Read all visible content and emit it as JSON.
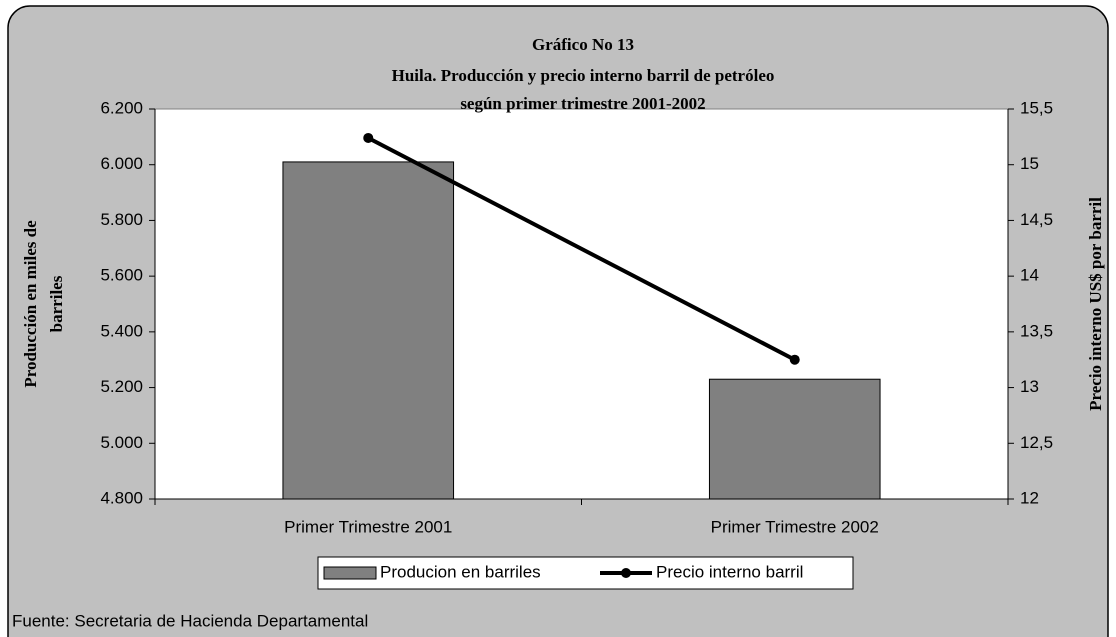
{
  "chart_data": {
    "type": "bar",
    "title": "Gráfico No 13",
    "subtitle": [
      "Huila. Producción y precio interno barril de petróleo",
      "según primer trimestre 2001-2002"
    ],
    "ylabel": [
      "Producción en miles de",
      "barriles"
    ],
    "y2label": "Precio interno US$ por barril",
    "source": "Fuente: Secretaria de Hacienda Departamental",
    "categories": [
      "Primer Trimestre 2001",
      "Primer Trimestre 2002"
    ],
    "series": [
      {
        "name": "Producion en barriles",
        "type": "bar",
        "color": "#808080",
        "values": [
          6010,
          5230
        ]
      },
      {
        "name": "Precio interno barril",
        "type": "line",
        "color": "#000000",
        "axis": "y2",
        "values": [
          15.24,
          13.25
        ]
      }
    ],
    "ylim": [
      4800,
      6200
    ],
    "yticks": [
      {
        "value": 4800,
        "label": "4.800"
      },
      {
        "value": 5000,
        "label": "5.000"
      },
      {
        "value": 5200,
        "label": "5.200"
      },
      {
        "value": 5400,
        "label": "5.400"
      },
      {
        "value": 5600,
        "label": "5.600"
      },
      {
        "value": 5800,
        "label": "5.800"
      },
      {
        "value": 6000,
        "label": "6.000"
      },
      {
        "value": 6200,
        "label": "6.200"
      }
    ],
    "y2lim": [
      12,
      15.5
    ],
    "y2ticks": [
      12,
      {
        "value": 12.5,
        "label": "12,5"
      },
      13,
      {
        "value": 13.5,
        "label": "13,5"
      },
      14,
      {
        "value": 14.5,
        "label": "14,5"
      },
      15,
      {
        "value": 15.5,
        "label": "15,5"
      }
    ],
    "legend": "bottom"
  }
}
